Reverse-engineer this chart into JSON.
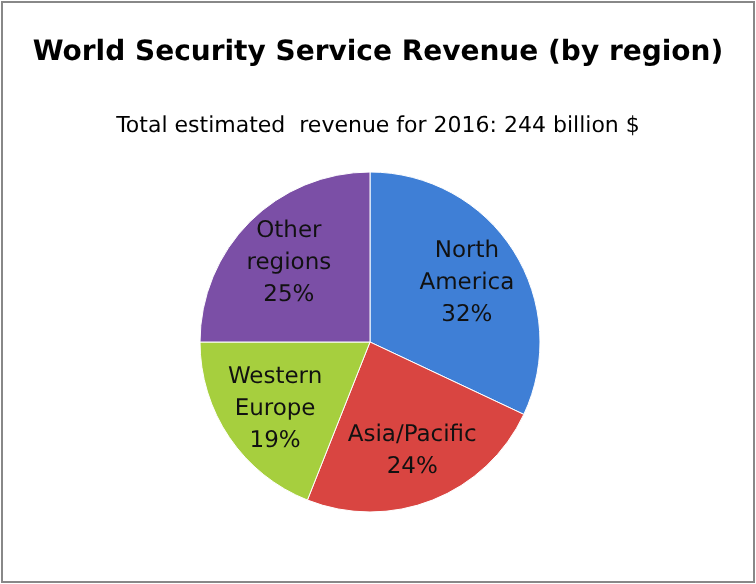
{
  "chart_data": {
    "type": "pie",
    "title": "World Security Service Revenue (by region)",
    "subtitle": "Total estimated  revenue for 2016: 244 billion $",
    "categories": [
      "North America",
      "Asia/Pacific",
      "Western Europe",
      "Other regions"
    ],
    "values": [
      32,
      24,
      19,
      25
    ],
    "colors": [
      "#3f7fd6",
      "#d94541",
      "#a6cf3e",
      "#7b4fa6"
    ],
    "value_labels": [
      "32%",
      "24%",
      "19%",
      "25%"
    ]
  }
}
